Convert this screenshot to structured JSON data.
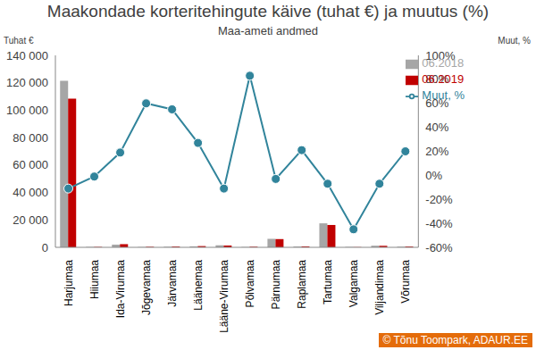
{
  "chart_data": {
    "type": "bar",
    "title": "Maakondade korteritehingute käive (tuhat €) ja muutus (%)",
    "subtitle": "Maa-ameti andmed",
    "y_label": "Tuhat €",
    "y2_label": "Muut, %",
    "credit": "© Tõnu Toompark, ADAUR.EE",
    "categories": [
      "Harjumaa",
      "Hiiumaa",
      "Ida-Virumaa",
      "Jõgevamaa",
      "Järvamaa",
      "Läänemaa",
      "Lääne-Virumaa",
      "Põlvamaa",
      "Pärnumaa",
      "Raplamaa",
      "Tartumaa",
      "Valgamaa",
      "Viljandimaa",
      "Võrumaa"
    ],
    "series": [
      {
        "name": "06.2018",
        "type": "bar",
        "axis": "y",
        "color": "#a6a6a6",
        "values": [
          121500,
          300,
          2000,
          250,
          400,
          700,
          1500,
          250,
          6200,
          600,
          17500,
          300,
          1200,
          500
        ]
      },
      {
        "name": "06.2019",
        "type": "bar",
        "axis": "y",
        "color": "#c00000",
        "values": [
          108500,
          300,
          2300,
          400,
          600,
          900,
          1300,
          450,
          6000,
          700,
          16300,
          170,
          1100,
          600
        ]
      },
      {
        "name": "Muut, %",
        "type": "line",
        "axis": "y2",
        "color": "#31849b",
        "marker": "circle",
        "values": [
          -11,
          -1,
          19,
          60,
          55,
          27,
          -11,
          83,
          -3,
          21,
          -7,
          -45,
          -7,
          20
        ]
      }
    ],
    "ylim": [
      0,
      140000
    ],
    "yticks": [
      0,
      {
        "value": 20000,
        "label": "20 000"
      },
      {
        "value": 40000,
        "label": "40 000"
      },
      {
        "value": 60000,
        "label": "60 000"
      },
      {
        "value": 80000,
        "label": "80 000"
      },
      {
        "value": 100000,
        "label": "100 000"
      },
      {
        "value": 120000,
        "label": "120 000"
      },
      {
        "value": 140000,
        "label": "140 000"
      }
    ],
    "y2lim": [
      -60,
      100
    ],
    "y2ticks": [
      {
        "value": -60,
        "label": "-60%"
      },
      {
        "value": -40,
        "label": "-40%"
      },
      {
        "value": -20,
        "label": "-20%"
      },
      {
        "value": 0,
        "label": "0%"
      },
      {
        "value": 20,
        "label": "20%"
      },
      {
        "value": 40,
        "label": "40%"
      },
      {
        "value": 60,
        "label": "60%"
      },
      {
        "value": 80,
        "label": "80%"
      },
      {
        "value": 100,
        "label": "100%"
      }
    ],
    "grid": false,
    "legend": "upper right"
  }
}
